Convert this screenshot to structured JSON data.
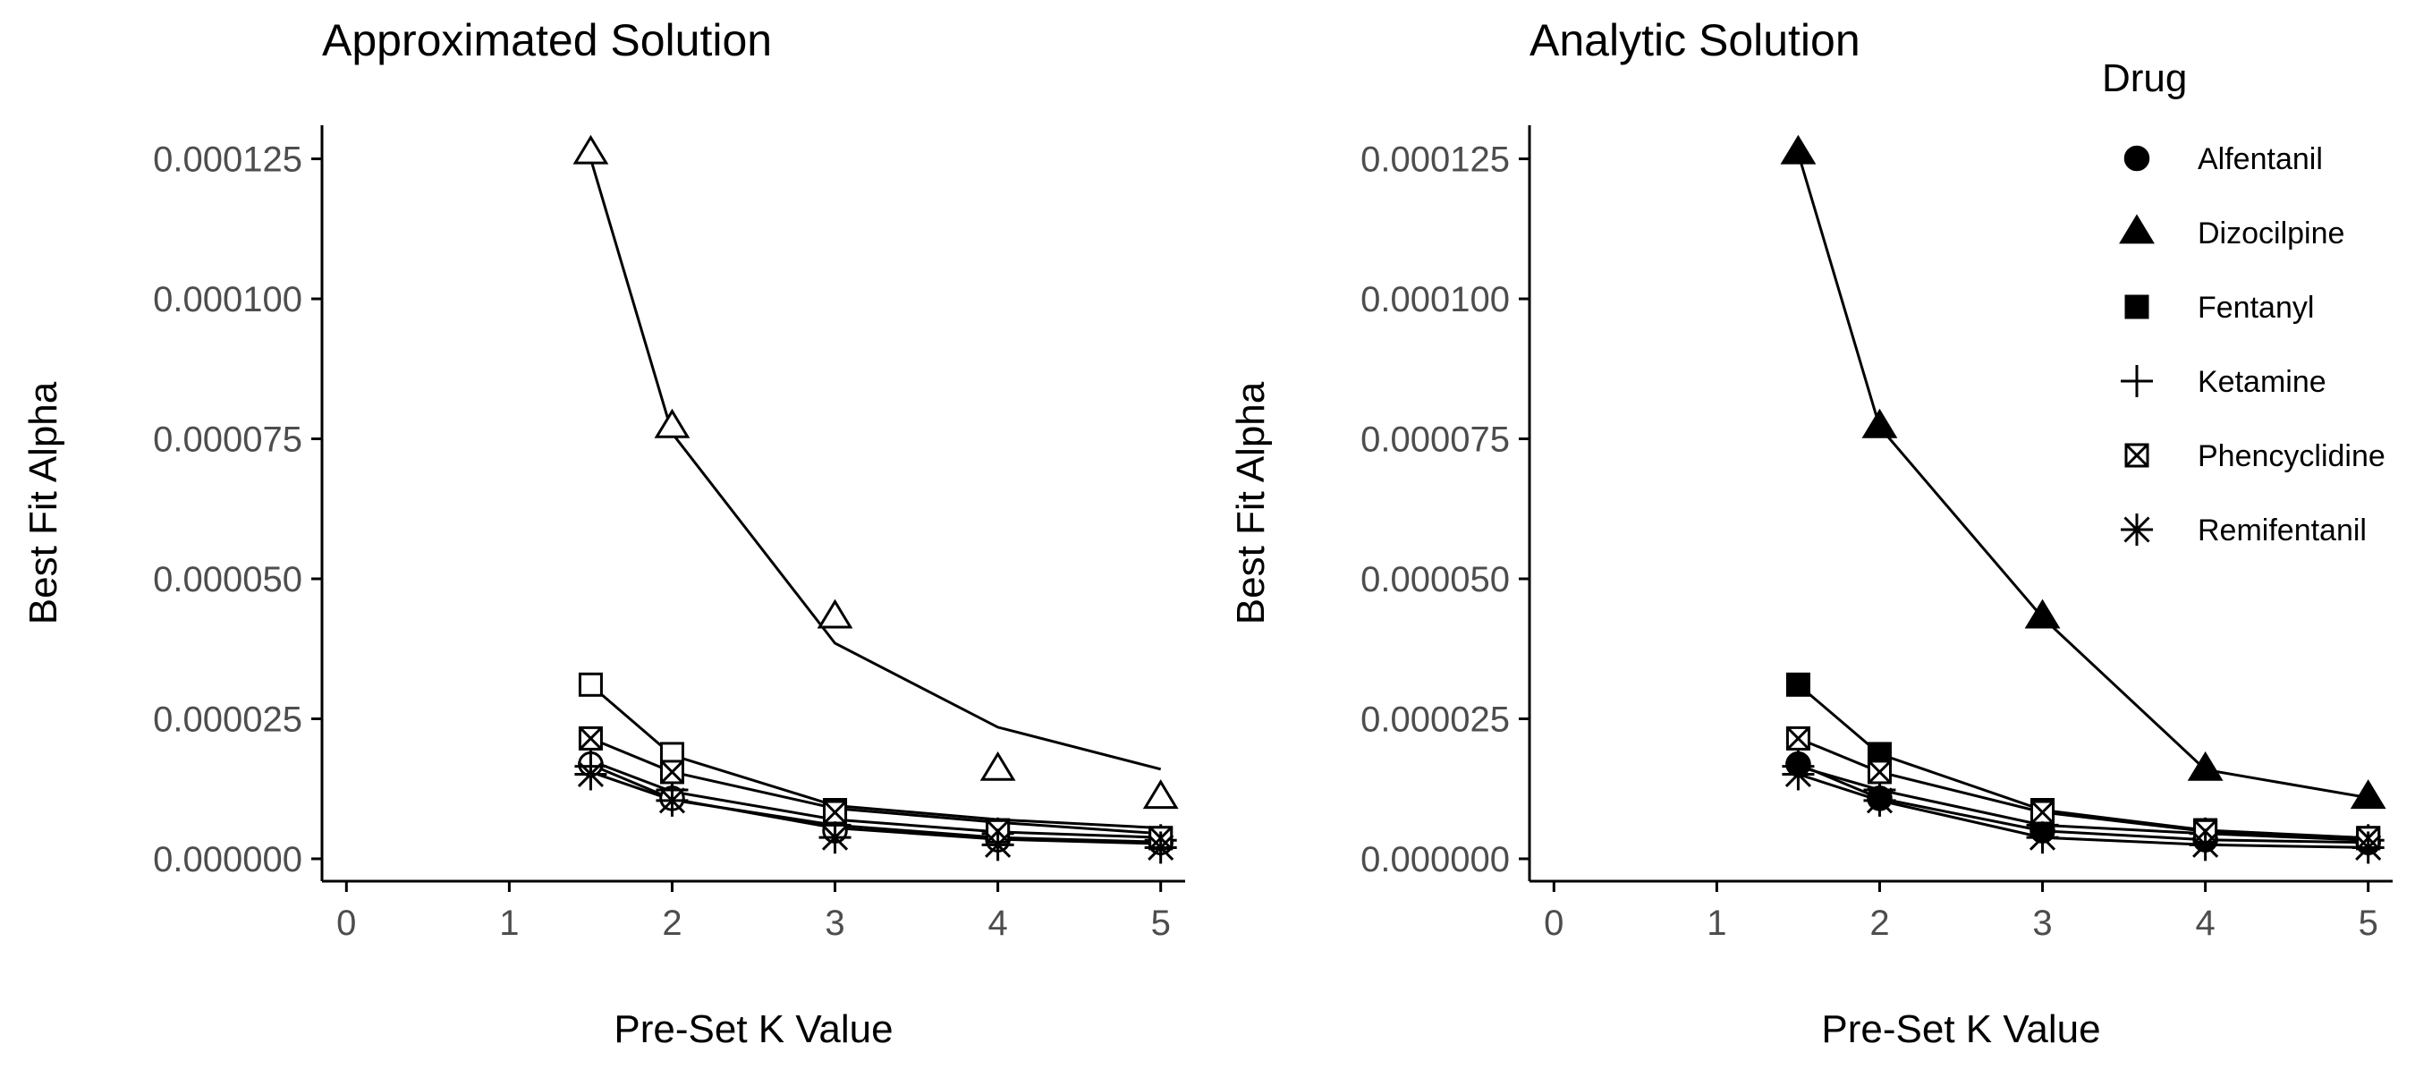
{
  "chart_data": [
    {
      "type": "line",
      "title": "Approximated Solution",
      "xlabel": "Pre-Set K Value",
      "ylabel": "Best Fit Alpha",
      "xlim": [
        -0.15,
        5.15
      ],
      "ylim": [
        -4e-06,
        0.000131
      ],
      "x_ticks": [
        0,
        1,
        2,
        3,
        4,
        5
      ],
      "x_tick_labels": [
        "0",
        "1",
        "2",
        "3",
        "4",
        "5"
      ],
      "y_ticks": [
        0,
        2.5e-05,
        5e-05,
        7.5e-05,
        0.0001,
        0.000125
      ],
      "y_tick_labels": [
        "0.000000",
        "0.000025",
        "0.000050",
        "0.000075",
        "0.000100",
        "0.000125"
      ],
      "marker_fill": "open",
      "x": [
        1.5,
        2,
        3,
        4,
        5
      ],
      "series": [
        {
          "name": "Alfentanil",
          "line": [
            1.68e-05,
            1.07e-05,
            5.5e-06,
            3.5e-06,
            2.7e-06
          ],
          "points": [
            1.69e-05,
            1.08e-05,
            5e-06,
            3.4e-06,
            2.9e-06
          ]
        },
        {
          "name": "Dizocilpine",
          "line": [
            0.000125,
            7.6e-05,
            3.85e-05,
            2.35e-05,
            1.6e-05
          ],
          "points": [
            0.000126,
            7.71e-05,
            4.31e-05,
            1.59e-05,
            1.09e-05
          ]
        },
        {
          "name": "Fentanyl",
          "line": [
            3.1e-05,
            1.85e-05,
            9.5e-06,
            7e-06,
            5.5e-06
          ],
          "points": [
            3.11e-05,
            1.87e-05,
            8.7e-06,
            5.1e-06,
            3.7e-06
          ]
        },
        {
          "name": "Ketamine",
          "line": [
            1.75e-05,
            1.2e-05,
            7e-06,
            4.8e-06,
            3.8e-06
          ],
          "points": [
            1.65e-05,
            1.23e-05,
            6e-06,
            4.5e-06,
            3.3e-06
          ]
        },
        {
          "name": "Phencyclidine",
          "line": [
            2.15e-05,
            1.55e-05,
            9e-06,
            6.5e-06,
            4.5e-06
          ],
          "points": [
            2.15e-05,
            1.55e-05,
            8.3e-06,
            4.9e-06,
            3.7e-06
          ]
        },
        {
          "name": "Remifentanil",
          "line": [
            1.55e-05,
            1.05e-05,
            6e-06,
            3.8e-06,
            3e-06
          ],
          "points": [
            1.51e-05,
            1.04e-05,
            3.8e-06,
            2.5e-06,
            2e-06
          ]
        }
      ]
    },
    {
      "type": "line",
      "title": "Analytic Solution",
      "xlabel": "Pre-Set K Value",
      "ylabel": "Best Fit Alpha",
      "xlim": [
        -0.15,
        5.15
      ],
      "ylim": [
        -4e-06,
        0.000131
      ],
      "x_ticks": [
        0,
        1,
        2,
        3,
        4,
        5
      ],
      "x_tick_labels": [
        "0",
        "1",
        "2",
        "3",
        "4",
        "5"
      ],
      "y_ticks": [
        0,
        2.5e-05,
        5e-05,
        7.5e-05,
        0.0001,
        0.000125
      ],
      "y_tick_labels": [
        "0.000000",
        "0.000025",
        "0.000050",
        "0.000075",
        "0.000100",
        "0.000125"
      ],
      "marker_fill": "solid",
      "x": [
        1.5,
        2,
        3,
        4,
        5
      ],
      "series": [
        {
          "name": "Alfentanil",
          "line": [
            1.69e-05,
            1.08e-05,
            5e-06,
            3.4e-06,
            2.9e-06
          ],
          "points": [
            1.69e-05,
            1.08e-05,
            5e-06,
            3.4e-06,
            2.9e-06
          ]
        },
        {
          "name": "Dizocilpine",
          "line": [
            0.000126,
            7.71e-05,
            4.31e-05,
            1.59e-05,
            1.09e-05
          ],
          "points": [
            0.000126,
            7.71e-05,
            4.31e-05,
            1.59e-05,
            1.09e-05
          ]
        },
        {
          "name": "Fentanyl",
          "line": [
            3.11e-05,
            1.87e-05,
            8.7e-06,
            5.1e-06,
            3.7e-06
          ],
          "points": [
            3.11e-05,
            1.87e-05,
            8.7e-06,
            5.1e-06,
            3.7e-06
          ]
        },
        {
          "name": "Ketamine",
          "line": [
            1.65e-05,
            1.23e-05,
            6e-06,
            4.5e-06,
            3.3e-06
          ],
          "points": [
            1.65e-05,
            1.23e-05,
            6e-06,
            4.5e-06,
            3.3e-06
          ]
        },
        {
          "name": "Phencyclidine",
          "line": [
            2.15e-05,
            1.55e-05,
            8.3e-06,
            4.9e-06,
            3.7e-06
          ],
          "points": [
            2.15e-05,
            1.55e-05,
            8.3e-06,
            4.9e-06,
            3.7e-06
          ]
        },
        {
          "name": "Remifentanil",
          "line": [
            1.51e-05,
            1.04e-05,
            3.8e-06,
            2.5e-06,
            2e-06
          ],
          "points": [
            1.51e-05,
            1.04e-05,
            3.8e-06,
            2.5e-06,
            2e-06
          ]
        }
      ]
    }
  ],
  "legend": {
    "title": "Drug",
    "placement": "right",
    "items": [
      {
        "label": "Alfentanil",
        "shape": "circle"
      },
      {
        "label": "Dizocilpine",
        "shape": "triangle"
      },
      {
        "label": "Fentanyl",
        "shape": "square"
      },
      {
        "label": "Ketamine",
        "shape": "plus"
      },
      {
        "label": "Phencyclidine",
        "shape": "boxed-x"
      },
      {
        "label": "Remifentanil",
        "shape": "asterisk"
      }
    ]
  },
  "colors": {
    "ink": "#000000",
    "tick_text": "#4d4d4d",
    "background": "#ffffff"
  }
}
